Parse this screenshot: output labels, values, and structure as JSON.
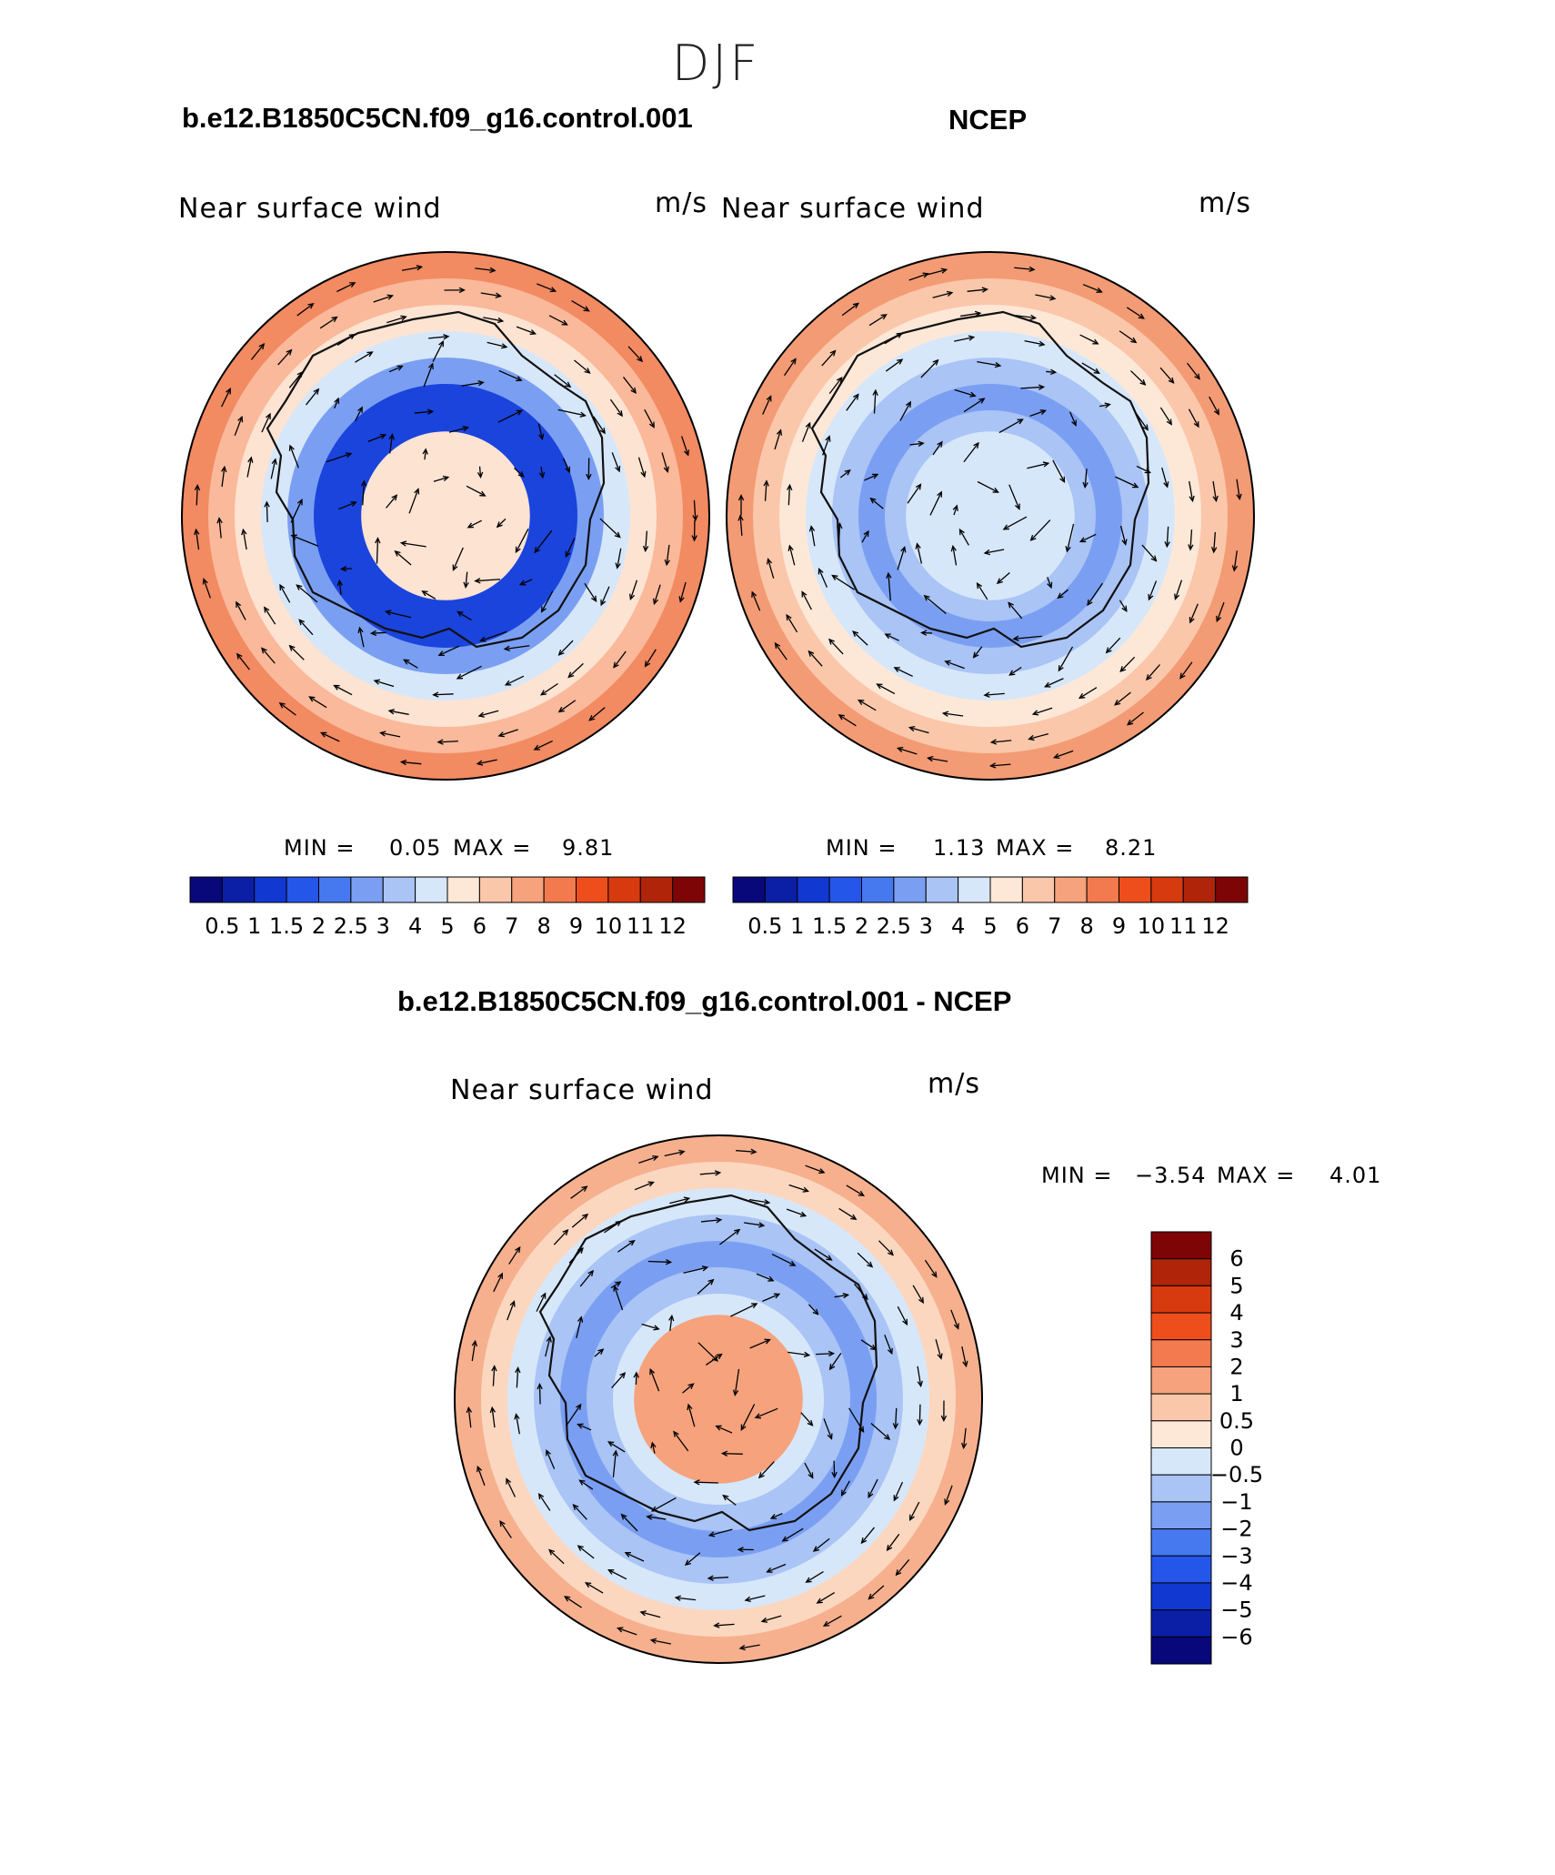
{
  "page": {
    "season": "DJF"
  },
  "panels": [
    {
      "id": "model",
      "case_title": "b.e12.B1850C5CN.f09_g16.control.001",
      "variable": "Near surface wind",
      "units": "m/s",
      "min_label": "MIN =",
      "min_value": "0.05",
      "max_label": "MAX =",
      "max_value": "9.81"
    },
    {
      "id": "obs",
      "case_title": "NCEP",
      "variable": "Near surface wind",
      "units": "m/s",
      "min_label": "MIN =",
      "min_value": "1.13",
      "max_label": "MAX =",
      "max_value": "8.21"
    },
    {
      "id": "diff",
      "case_title": "b.e12.B1850C5CN.f09_g16.control.001 - NCEP",
      "variable": "Near surface wind",
      "units": "m/s",
      "min_label": "MIN =",
      "min_value": "−3.54",
      "max_label": "MAX =",
      "max_value": "4.01"
    }
  ],
  "colorbars": {
    "abs_labels": [
      "0.5",
      "1",
      "1.5",
      "2",
      "2.5",
      "3",
      "4",
      "5",
      "6",
      "7",
      "8",
      "9",
      "10",
      "11",
      "12"
    ],
    "abs_colors": [
      "#08087a",
      "#0a1fa6",
      "#1238d2",
      "#2456ea",
      "#4678f0",
      "#7a9ff2",
      "#a9c4f5",
      "#d7e7fa",
      "#fde8d8",
      "#fbc7aa",
      "#f6a27c",
      "#f27a4e",
      "#ee4e1c",
      "#d83a10",
      "#b0240a",
      "#7e0505"
    ],
    "diff_labels": [
      "6",
      "5",
      "4",
      "3",
      "2",
      "1",
      "0.5",
      "0",
      "−0.5",
      "−1",
      "−2",
      "−3",
      "−4",
      "−5",
      "−6"
    ],
    "diff_colors": [
      "#7e0505",
      "#b0240a",
      "#d83a10",
      "#ee4e1c",
      "#f27a4e",
      "#f6a27c",
      "#fbc7aa",
      "#fde8d8",
      "#d7e7fa",
      "#a9c4f5",
      "#7a9ff2",
      "#4678f0",
      "#2456ea",
      "#1238d2",
      "#0a1fa6",
      "#08087a"
    ]
  },
  "map_style": {
    "model": {
      "ring": [
        "#f28a62",
        "#fab99a",
        "#fde3d2",
        "#d7e7fa",
        "#7a9ff2",
        "#1a44dc",
        "#1a44dc",
        "#7a9ff2",
        "#d7e7fa"
      ],
      "interior": "#fde3d2"
    },
    "obs": {
      "ring": [
        "#f39b74",
        "#fbc7aa",
        "#fde8d8",
        "#d7e7fa",
        "#a9c4f5",
        "#7a9ff2",
        "#a9c4f5",
        "#d7e7fa",
        "#d7e7fa"
      ],
      "interior": "#d7e7fa"
    },
    "diff": {
      "ring": [
        "#f6b08e",
        "#fcd7c0",
        "#d7e7fa",
        "#a9c4f5",
        "#7a9ff2",
        "#a9c4f5",
        "#d7e7fa",
        "#fcd7c0",
        "#f6a27c"
      ],
      "interior": "#f6a27c"
    }
  }
}
